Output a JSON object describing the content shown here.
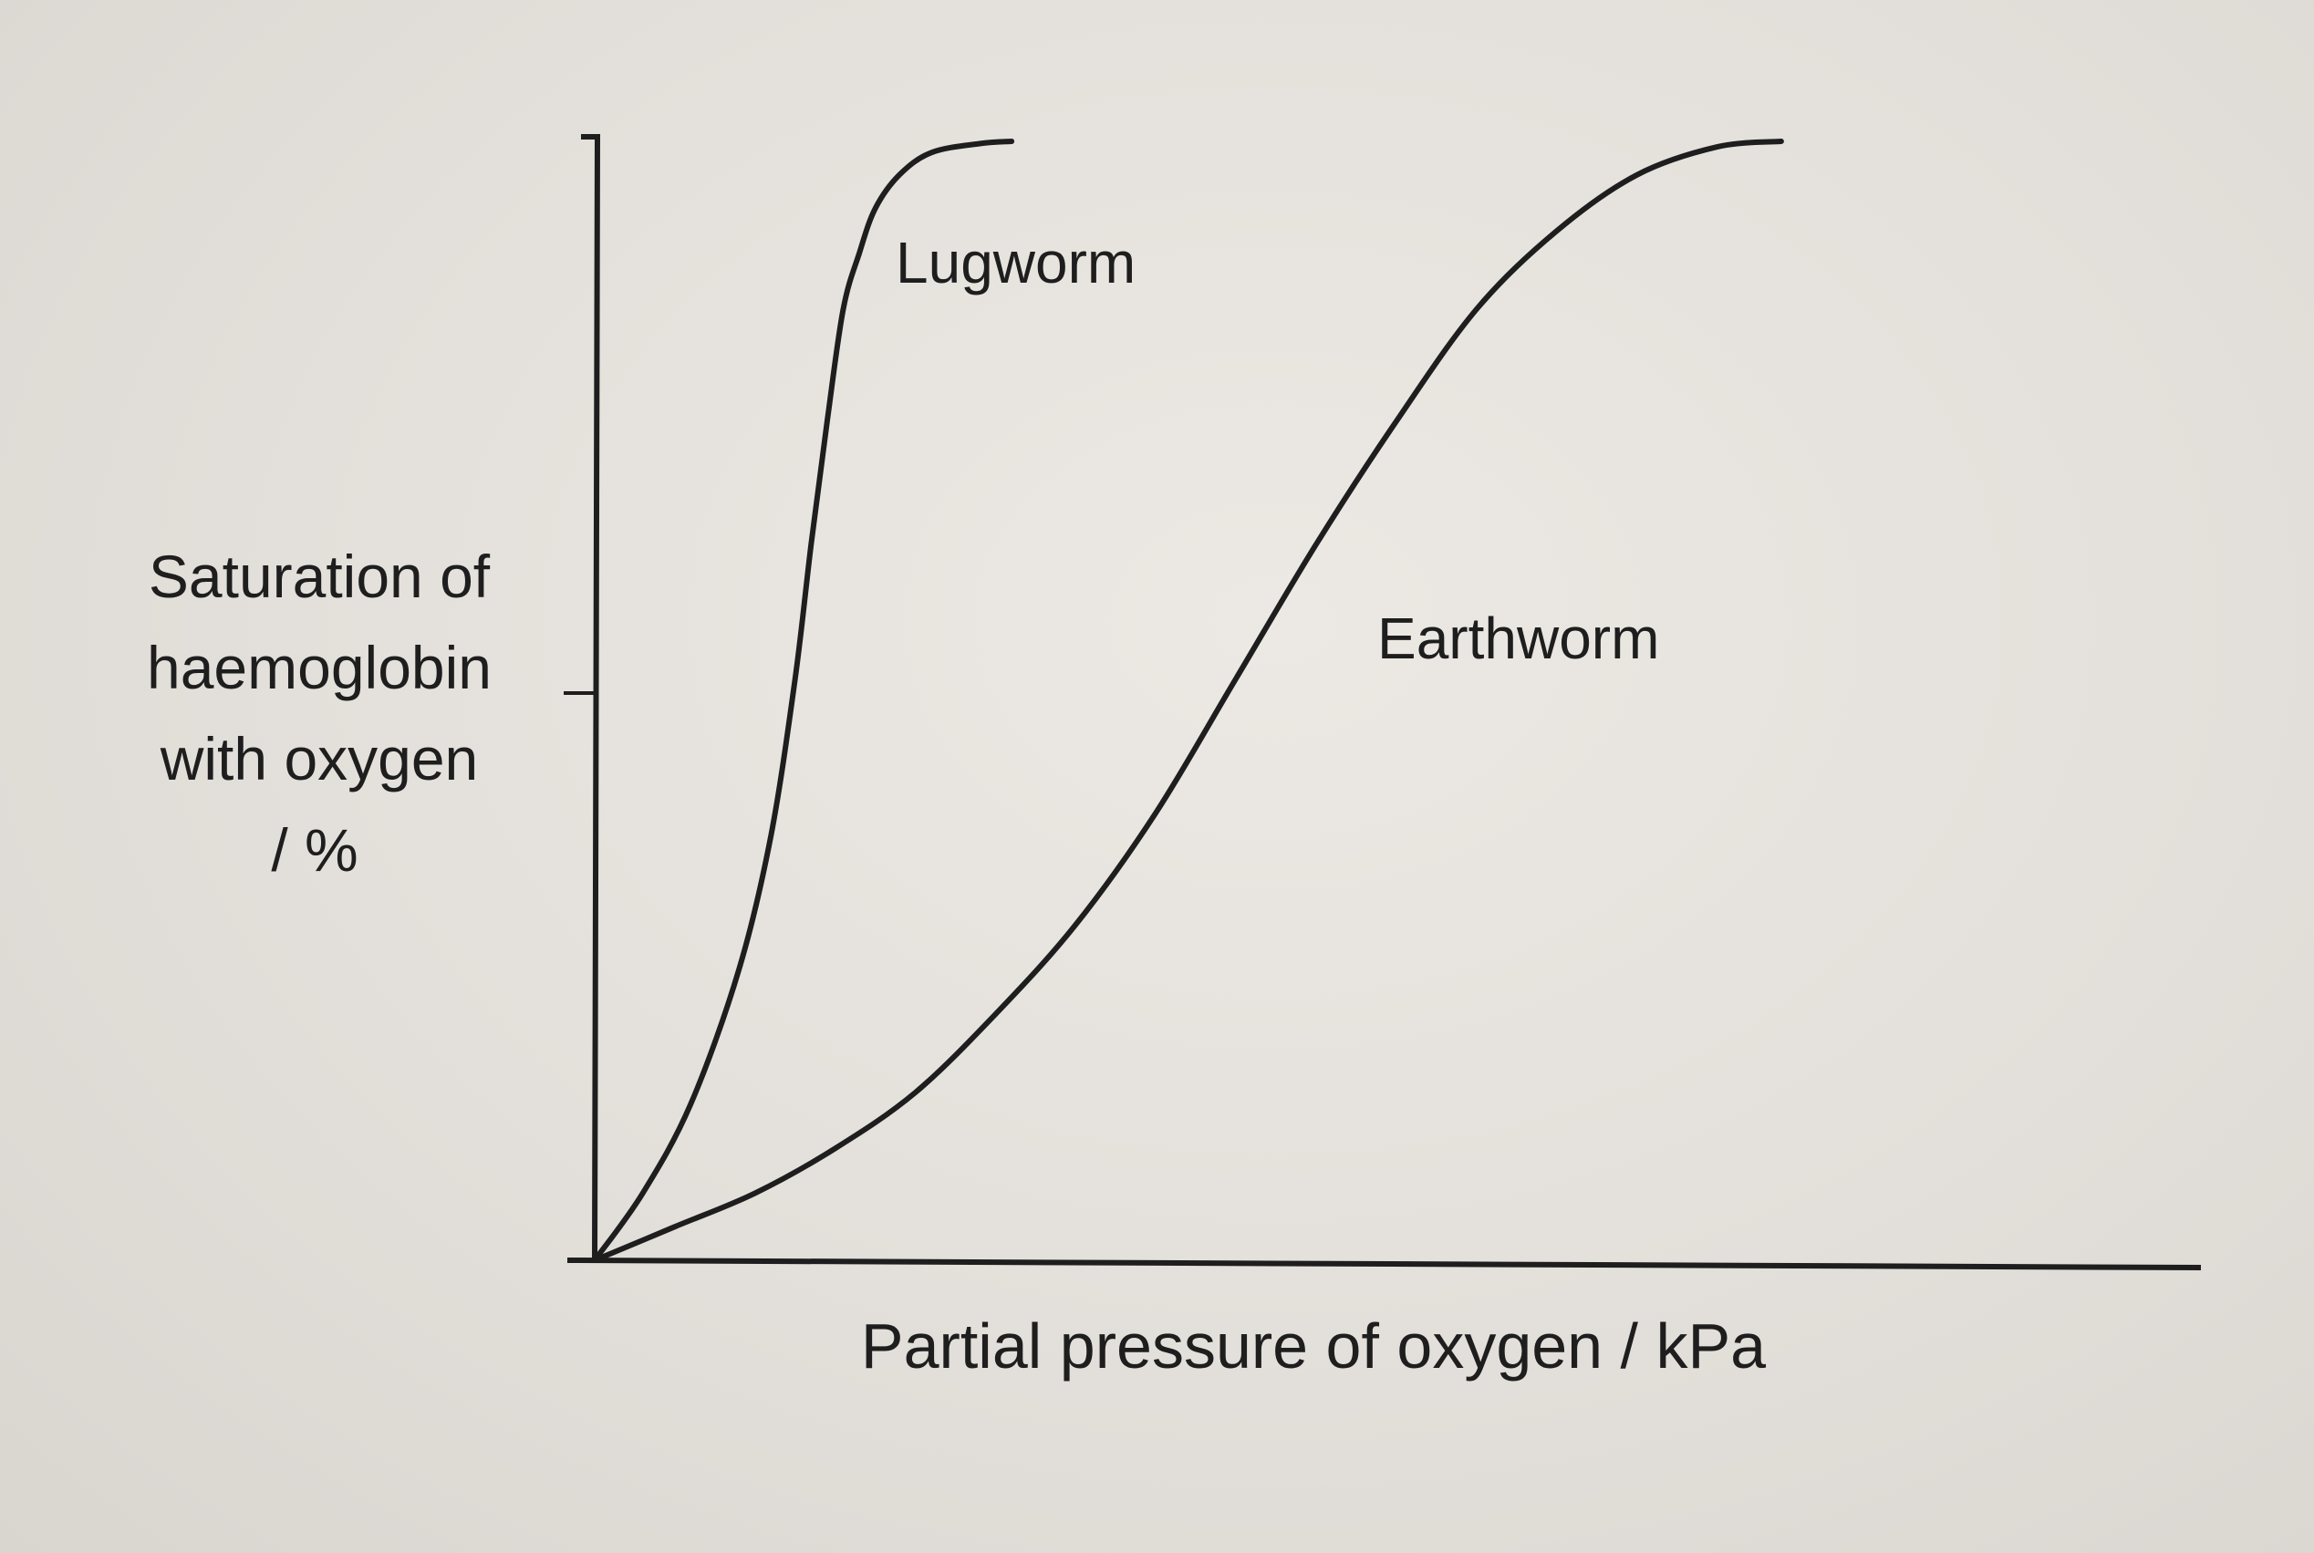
{
  "chart_data": {
    "type": "line",
    "xlabel": "Partial pressure of oxygen / kPa",
    "ylabel_lines": [
      "Saturation of",
      "haemoglobin",
      "with oxygen",
      "/ %"
    ],
    "xlim": [
      0,
      100
    ],
    "ylim": [
      0,
      100
    ],
    "grid": false,
    "legend": "none",
    "series": [
      {
        "name": "Lugworm",
        "color": "#1e1e1e",
        "x": [
          0,
          3,
          6,
          9,
          11,
          12.5,
          13.5,
          14.5,
          15.5,
          16.5,
          17.5,
          19,
          21,
          24,
          26
        ],
        "y": [
          0,
          6,
          14,
          26,
          38,
          52,
          64,
          75,
          85,
          90,
          94,
          97,
          99,
          99.8,
          100
        ]
      },
      {
        "name": "Earthworm",
        "color": "#1e1e1e",
        "x": [
          0,
          5,
          10,
          15,
          20,
          25,
          30,
          35,
          40,
          45,
          50,
          55,
          60,
          65,
          70,
          74
        ],
        "y": [
          0,
          3,
          6,
          10,
          15,
          22,
          30,
          40,
          52,
          64,
          75,
          85,
          92,
          97,
          99.5,
          100
        ]
      }
    ]
  }
}
